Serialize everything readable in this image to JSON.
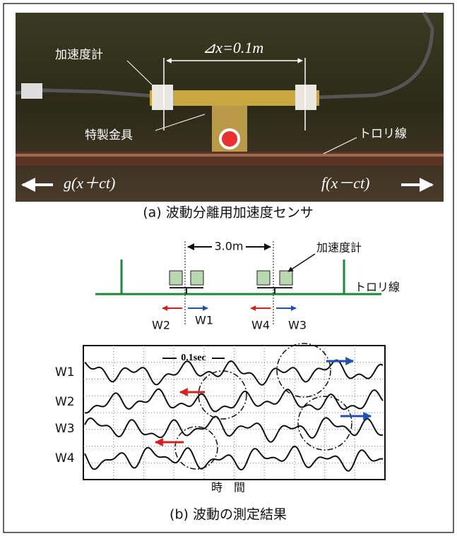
{
  "photo": {
    "sensor_label": "加速度計",
    "spacing": "⊿x=0.1m",
    "bracket_label": "特製金具",
    "wire_label": "トロリ線",
    "backward_wave": "g(x＋ct)",
    "forward_wave": "f(x－ct)"
  },
  "caption_a": "(a) 波動分離用加速度センサ",
  "diagram": {
    "distance": "3.0m",
    "sensor_label": "加速度計",
    "wire_label": "トロリ線",
    "w2": "W2",
    "w1": "W1",
    "w4": "W4",
    "w3": "W3"
  },
  "scope": {
    "time_scale": "0.1sec",
    "traces": [
      "W1",
      "W2",
      "W3",
      "W4"
    ],
    "x_label": "時　間"
  },
  "caption_b": "(b) 波動の測定結果"
}
